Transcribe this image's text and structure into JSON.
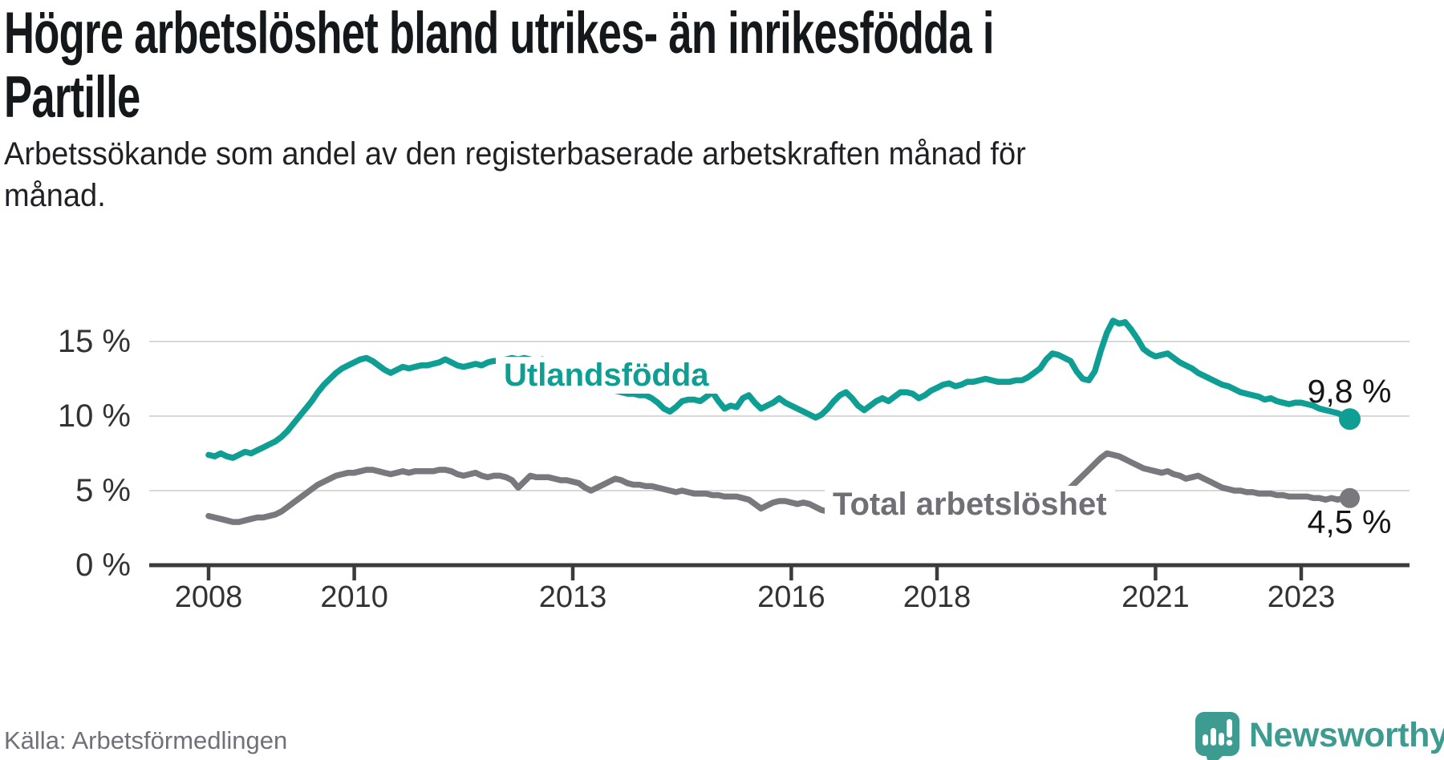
{
  "header": {
    "title": "Högre arbetslöshet bland utrikes- än inrikesfödda i\nPartille",
    "subtitle": "Arbetssökande som andel av den registerbaserade arbetskraften månad för\nmånad."
  },
  "footer": {
    "source": "Källa: Arbetsförmedlingen",
    "brand": "Newsworthy",
    "brand_icon": "speech-bubble-bar-chart"
  },
  "colors": {
    "accent_teal": "#0f9e93",
    "line_gray": "#78787d",
    "gridline": "#d9d9d9",
    "axis": "#3b3b3b",
    "tick_label": "#333333",
    "value_label": "#161616",
    "source_text": "#70707a",
    "brand_teal": "#3d9b90"
  },
  "chart_data": {
    "type": "line",
    "unit": "%",
    "frequency": "monthly",
    "start": "2008-01",
    "end": "2023-09",
    "grid": "horizontal",
    "legend_position": "inline-labels",
    "ylim": [
      0,
      17.5
    ],
    "y_ticks": [
      {
        "value": 0,
        "label": "0 %"
      },
      {
        "value": 5,
        "label": "5 %"
      },
      {
        "value": 10,
        "label": "10 %"
      },
      {
        "value": 15,
        "label": "15 %"
      }
    ],
    "x_ticks": [
      {
        "value": 2008,
        "label": "2008"
      },
      {
        "value": 2010,
        "label": "2010"
      },
      {
        "value": 2013,
        "label": "2013"
      },
      {
        "value": 2016,
        "label": "2016"
      },
      {
        "value": 2018,
        "label": "2018"
      },
      {
        "value": 2021,
        "label": "2021"
      },
      {
        "value": 2023,
        "label": "2023"
      }
    ],
    "series": [
      {
        "name": "Utlandsfödda",
        "color": "#0f9e93",
        "end_label": "9,8 %",
        "end_value": 9.8,
        "values": [
          7.4,
          7.3,
          7.5,
          7.3,
          7.2,
          7.4,
          7.6,
          7.5,
          7.7,
          7.9,
          8.1,
          8.3,
          8.6,
          9.0,
          9.5,
          10.0,
          10.5,
          11.0,
          11.6,
          12.1,
          12.5,
          12.9,
          13.2,
          13.4,
          13.6,
          13.8,
          13.9,
          13.7,
          13.4,
          13.1,
          12.9,
          13.1,
          13.3,
          13.2,
          13.3,
          13.4,
          13.4,
          13.5,
          13.6,
          13.8,
          13.6,
          13.4,
          13.3,
          13.4,
          13.5,
          13.4,
          13.6,
          13.7,
          13.7,
          13.8,
          13.9,
          13.8,
          13.9,
          13.8,
          13.7,
          13.8,
          13.7,
          13.6,
          13.5,
          13.4,
          13.2,
          13.0,
          12.8,
          12.5,
          12.3,
          12.1,
          11.9,
          11.7,
          11.6,
          11.5,
          11.5,
          11.4,
          11.4,
          11.2,
          10.9,
          10.5,
          10.3,
          10.6,
          11.0,
          11.1,
          11.1,
          11.0,
          11.3,
          11.6,
          11.0,
          10.5,
          10.7,
          10.6,
          11.2,
          11.4,
          10.9,
          10.5,
          10.7,
          10.9,
          11.2,
          10.9,
          10.7,
          10.5,
          10.3,
          10.1,
          9.9,
          10.1,
          10.5,
          11.0,
          11.4,
          11.6,
          11.2,
          10.7,
          10.4,
          10.7,
          11.0,
          11.2,
          11.0,
          11.3,
          11.6,
          11.6,
          11.5,
          11.2,
          11.4,
          11.7,
          11.9,
          12.1,
          12.2,
          12.0,
          12.1,
          12.3,
          12.3,
          12.4,
          12.5,
          12.4,
          12.3,
          12.3,
          12.3,
          12.4,
          12.4,
          12.6,
          12.9,
          13.2,
          13.8,
          14.2,
          14.1,
          13.9,
          13.7,
          13.0,
          12.5,
          12.4,
          13.0,
          14.4,
          15.6,
          16.4,
          16.2,
          16.3,
          15.8,
          15.2,
          14.5,
          14.2,
          14.0,
          14.1,
          14.2,
          13.9,
          13.6,
          13.4,
          13.2,
          12.9,
          12.7,
          12.5,
          12.3,
          12.1,
          12.0,
          11.8,
          11.6,
          11.5,
          11.4,
          11.3,
          11.1,
          11.2,
          11.0,
          10.9,
          10.8,
          10.9,
          10.9,
          10.8,
          10.7,
          10.5,
          10.4,
          10.3,
          10.2,
          10.0,
          9.8
        ]
      },
      {
        "name": "Total arbetslöshet",
        "color": "#78787d",
        "end_label": "4,5 %",
        "end_value": 4.5,
        "values": [
          3.3,
          3.2,
          3.1,
          3.0,
          2.9,
          2.9,
          3.0,
          3.1,
          3.2,
          3.2,
          3.3,
          3.4,
          3.6,
          3.9,
          4.2,
          4.5,
          4.8,
          5.1,
          5.4,
          5.6,
          5.8,
          6.0,
          6.1,
          6.2,
          6.2,
          6.3,
          6.4,
          6.4,
          6.3,
          6.2,
          6.1,
          6.2,
          6.3,
          6.2,
          6.3,
          6.3,
          6.3,
          6.3,
          6.4,
          6.4,
          6.3,
          6.1,
          6.0,
          6.1,
          6.2,
          6.0,
          5.9,
          6.0,
          6.0,
          5.9,
          5.7,
          5.2,
          5.6,
          6.0,
          5.9,
          5.9,
          5.9,
          5.8,
          5.7,
          5.7,
          5.6,
          5.5,
          5.2,
          5.0,
          5.2,
          5.4,
          5.6,
          5.8,
          5.7,
          5.5,
          5.4,
          5.4,
          5.3,
          5.3,
          5.2,
          5.1,
          5.0,
          4.9,
          5.0,
          4.9,
          4.8,
          4.8,
          4.8,
          4.7,
          4.7,
          4.6,
          4.6,
          4.6,
          4.5,
          4.4,
          4.1,
          3.8,
          4.0,
          4.2,
          4.3,
          4.3,
          4.2,
          4.1,
          4.2,
          4.1,
          3.9,
          3.7,
          3.6,
          3.5,
          3.5,
          3.6,
          3.6,
          3.7,
          3.7,
          3.8,
          3.8,
          3.9,
          3.9,
          4.0,
          4.0,
          4.0,
          4.1,
          4.1,
          4.1,
          4.2,
          4.2,
          4.2,
          4.3,
          4.3,
          4.3,
          4.4,
          4.4,
          4.4,
          4.5,
          4.5,
          4.5,
          4.5,
          4.5,
          4.5,
          4.6,
          4.6,
          4.7,
          4.7,
          4.8,
          4.8,
          4.9,
          5.0,
          5.2,
          5.6,
          6.0,
          6.4,
          6.8,
          7.2,
          7.5,
          7.4,
          7.3,
          7.1,
          6.9,
          6.7,
          6.5,
          6.4,
          6.3,
          6.2,
          6.3,
          6.1,
          6.0,
          5.8,
          5.9,
          6.0,
          5.8,
          5.6,
          5.4,
          5.2,
          5.1,
          5.0,
          5.0,
          4.9,
          4.9,
          4.8,
          4.8,
          4.8,
          4.7,
          4.7,
          4.6,
          4.6,
          4.6,
          4.6,
          4.5,
          4.5,
          4.4,
          4.5,
          4.4,
          4.5,
          4.5
        ]
      }
    ]
  }
}
